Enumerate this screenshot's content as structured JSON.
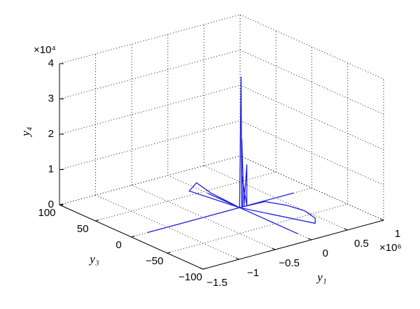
{
  "chart_data": {
    "type": "line3d",
    "xlabel": "y₁",
    "ylabel": "y₃",
    "zlabel": "y₄",
    "x_multiplier": "×10⁶",
    "z_multiplier": "×10⁴",
    "xlim": [
      -1.5,
      1
    ],
    "ylim": [
      -100,
      100
    ],
    "zlim": [
      0,
      4
    ],
    "xticks": [
      {
        "value": -1.5,
        "label": "−1.5"
      },
      {
        "value": -1,
        "label": "−1"
      },
      {
        "value": -0.5,
        "label": "−0.5"
      },
      0,
      0.5,
      1
    ],
    "yticks": [
      {
        "value": -100,
        "label": "−100"
      },
      {
        "value": -50,
        "label": "−50"
      },
      0,
      50,
      100
    ],
    "zticks": [
      0,
      1,
      2,
      3,
      4
    ],
    "grid": true,
    "series": [
      {
        "color": "#1f1fe0",
        "x": [
          -1.28,
          0.75,
          0,
          0,
          0,
          0,
          0.02,
          0.03,
          0.05,
          0.06,
          0.08,
          0.1,
          0.03,
          0.04,
          0.3,
          0.45,
          0.5,
          0.45,
          0.35,
          0,
          -0.1,
          -0.2,
          -0.25,
          0
        ],
        "y": [
          0,
          0,
          0,
          45,
          -81,
          0,
          0,
          0,
          2,
          0,
          -2,
          0,
          0,
          0,
          -5,
          -20,
          -40,
          -60,
          -70,
          0,
          30,
          40,
          45,
          0
        ],
        "z": [
          0,
          0,
          0,
          0,
          0,
          0,
          3.7,
          0,
          1.9,
          0,
          1.2,
          0,
          0.9,
          0,
          0.05,
          0,
          0,
          0,
          0,
          0,
          0.2,
          0.45,
          0.2,
          0
        ]
      }
    ]
  }
}
